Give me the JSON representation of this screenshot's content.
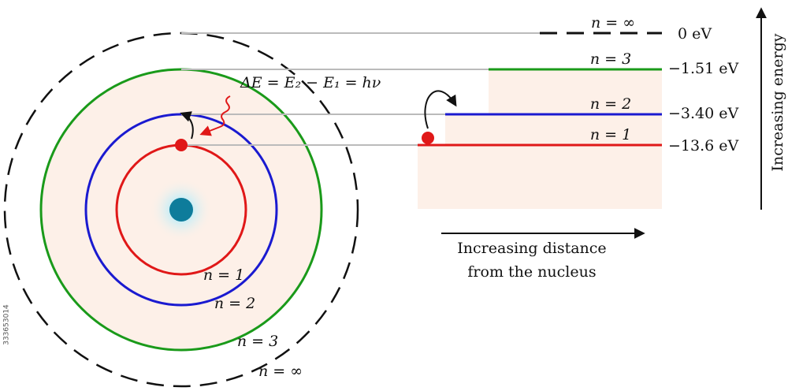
{
  "levels": [
    {
      "n_label": "n = ∞",
      "energy": "0 eV"
    },
    {
      "n_label": "n = 3",
      "energy": "−1.51 eV"
    },
    {
      "n_label": "n = 2",
      "energy": "−3.40 eV"
    },
    {
      "n_label": "n = 1",
      "energy": "−13.6 eV"
    }
  ],
  "orbit_labels": [
    "n = 1",
    "n = 2",
    "n = 3",
    "n = ∞"
  ],
  "formula": "ΔE = E₂ − E₁ = hν",
  "y_axis_label": "Increasing energy",
  "x_axis_label": [
    "Increasing distance",
    "from the nucleus"
  ],
  "watermark": "333653014"
}
